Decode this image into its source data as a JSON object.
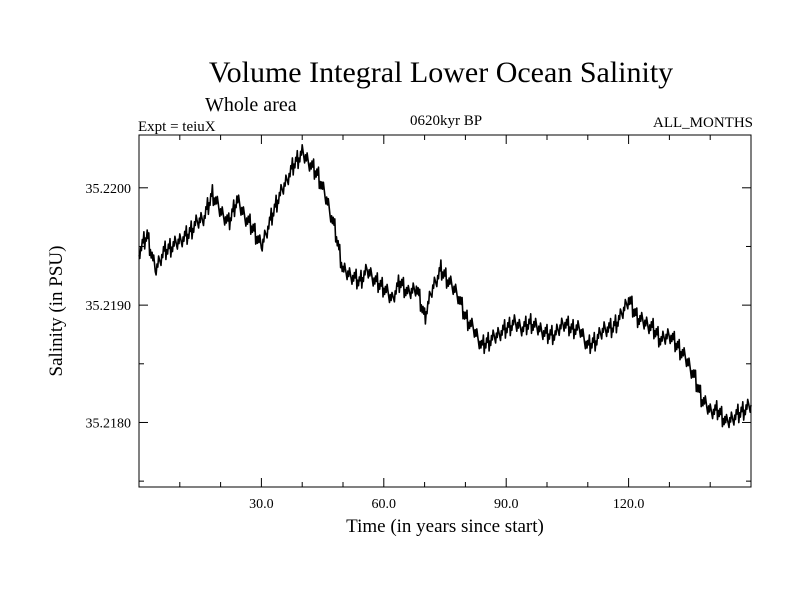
{
  "chart_data": {
    "type": "line",
    "title": "Volume Integral Lower Ocean Salinity",
    "subtitle": "Whole area",
    "experiment": "Expt = teiuX",
    "period": "0620kyr BP",
    "months": "ALL_MONTHS",
    "xlabel": "Time (in years since start)",
    "ylabel": "Salinity (in PSU)",
    "xlim": [
      0,
      150
    ],
    "ylim": [
      35.21745,
      35.22045
    ],
    "x_ticks": [
      30,
      60,
      90,
      120
    ],
    "x_tick_labels": [
      "30.0",
      "60.0",
      "90.0",
      "120.0"
    ],
    "x_minor_step": 10,
    "y_ticks": [
      35.218,
      35.219,
      35.22
    ],
    "y_tick_labels": [
      "35.2180",
      "35.2190",
      "35.2200"
    ],
    "y_minor_step": 0.0005,
    "grid": false,
    "series": [
      {
        "name": "salinity",
        "color": "#000000",
        "x": [
          0,
          2,
          4,
          6,
          8,
          10,
          12,
          14,
          16,
          18,
          20,
          22,
          24,
          26,
          28,
          30,
          32,
          34,
          36,
          38,
          40,
          42,
          44,
          46,
          48,
          50,
          52,
          54,
          56,
          58,
          60,
          62,
          64,
          66,
          68,
          70,
          72,
          74,
          76,
          78,
          80,
          82,
          84,
          86,
          88,
          90,
          92,
          94,
          96,
          98,
          100,
          102,
          104,
          106,
          108,
          110,
          112,
          114,
          116,
          118,
          120,
          122,
          124,
          126,
          128,
          130,
          132,
          134,
          136,
          138,
          140,
          142,
          144,
          146,
          148,
          150
        ],
        "values": [
          35.21945,
          35.2196,
          35.2193,
          35.21945,
          35.2195,
          35.21955,
          35.2196,
          35.2197,
          35.21975,
          35.21995,
          35.2198,
          35.2197,
          35.2199,
          35.21975,
          35.21965,
          35.2195,
          35.2197,
          35.2199,
          35.22005,
          35.2202,
          35.2203,
          35.2202,
          35.2201,
          35.2199,
          35.21965,
          35.2193,
          35.21925,
          35.2192,
          35.2193,
          35.2192,
          35.21915,
          35.21905,
          35.2192,
          35.2191,
          35.21915,
          35.2189,
          35.21915,
          35.2193,
          35.2192,
          35.2191,
          35.2189,
          35.2188,
          35.21865,
          35.2187,
          35.21875,
          35.2188,
          35.21885,
          35.2188,
          35.21885,
          35.2188,
          35.21875,
          35.21875,
          35.21885,
          35.2188,
          35.2188,
          35.21865,
          35.2187,
          35.2188,
          35.2188,
          35.2189,
          35.21905,
          35.2189,
          35.21885,
          35.2188,
          35.2187,
          35.21875,
          35.21865,
          35.21855,
          35.2184,
          35.2182,
          35.2181,
          35.2181,
          35.218,
          35.21805,
          35.2181,
          35.21815
        ]
      }
    ]
  }
}
